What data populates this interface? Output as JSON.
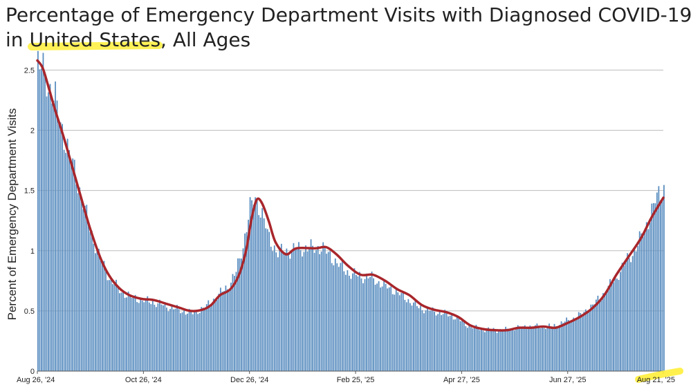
{
  "title": {
    "line1": "Percentage of Emergency Department Visits with Diagnosed COVID-19",
    "line2_prefix": "in ",
    "line2_highlight": "United States",
    "line2_suffix": ", All Ages",
    "highlight_color": "#ffee3a"
  },
  "colors": {
    "bars": "#5b8ec0",
    "line": "#a8262b",
    "grid": "#bdbdbd",
    "text": "#222222"
  },
  "chart_data": {
    "type": "bar",
    "ylabel": "Percent of Emergency Department Visits",
    "ylim": [
      0,
      2.6
    ],
    "y_ticks": [
      {
        "value": 0,
        "label": "0"
      },
      {
        "value": 0.5,
        "label": "0.5"
      },
      {
        "value": 1,
        "label": "1"
      },
      {
        "value": 1.5,
        "label": "1.5"
      },
      {
        "value": 2,
        "label": "2"
      },
      {
        "value": 2.5,
        "label": "2.5"
      }
    ],
    "x_range": [
      "2024-08-26",
      "2025-08-21"
    ],
    "x_ticks": [
      {
        "date": "2024-08-26",
        "label": "Aug 26, '24"
      },
      {
        "date": "2024-10-26",
        "label": "Oct 26, '24"
      },
      {
        "date": "2024-12-26",
        "label": "Dec 26, '24"
      },
      {
        "date": "2025-02-25",
        "label": "Feb 25, '25"
      },
      {
        "date": "2025-04-27",
        "label": "Apr 27, '25"
      },
      {
        "date": "2025-06-27",
        "label": "Jun 27, '25"
      },
      {
        "date": "2025-08-21",
        "label": "Aug 21, '25",
        "highlighted": true
      }
    ],
    "grid": true,
    "series": [
      {
        "kind": "bars",
        "frequency": "daily",
        "start_date": "2024-08-26",
        "end_date": "2025-08-21",
        "anchors": [
          [
            "2024-08-26",
            2.55
          ],
          [
            "2024-08-30",
            2.45
          ],
          [
            "2024-09-05",
            2.25
          ],
          [
            "2024-09-10",
            1.95
          ],
          [
            "2024-09-15",
            1.72
          ],
          [
            "2024-09-20",
            1.45
          ],
          [
            "2024-09-25",
            1.18
          ],
          [
            "2024-10-01",
            0.92
          ],
          [
            "2024-10-06",
            0.78
          ],
          [
            "2024-10-12",
            0.67
          ],
          [
            "2024-10-18",
            0.62
          ],
          [
            "2024-10-25",
            0.59
          ],
          [
            "2024-11-01",
            0.57
          ],
          [
            "2024-11-10",
            0.53
          ],
          [
            "2024-11-17",
            0.5
          ],
          [
            "2024-11-23",
            0.48
          ],
          [
            "2024-12-01",
            0.54
          ],
          [
            "2024-12-07",
            0.62
          ],
          [
            "2024-12-13",
            0.7
          ],
          [
            "2024-12-18",
            0.82
          ],
          [
            "2024-12-22",
            1.05
          ],
          [
            "2024-12-26",
            1.35
          ],
          [
            "2024-12-29",
            1.45
          ],
          [
            "2025-01-02",
            1.3
          ],
          [
            "2025-01-06",
            1.1
          ],
          [
            "2025-01-11",
            0.98
          ],
          [
            "2025-01-18",
            1.0
          ],
          [
            "2025-01-25",
            1.02
          ],
          [
            "2025-02-01",
            1.02
          ],
          [
            "2025-02-05",
            1.03
          ],
          [
            "2025-02-12",
            0.93
          ],
          [
            "2025-02-19",
            0.83
          ],
          [
            "2025-02-26",
            0.79
          ],
          [
            "2025-03-05",
            0.78
          ],
          [
            "2025-03-12",
            0.72
          ],
          [
            "2025-03-19",
            0.67
          ],
          [
            "2025-03-26",
            0.6
          ],
          [
            "2025-04-02",
            0.53
          ],
          [
            "2025-04-09",
            0.5
          ],
          [
            "2025-04-16",
            0.48
          ],
          [
            "2025-04-23",
            0.45
          ],
          [
            "2025-04-30",
            0.38
          ],
          [
            "2025-05-07",
            0.35
          ],
          [
            "2025-05-14",
            0.34
          ],
          [
            "2025-05-21",
            0.34
          ],
          [
            "2025-05-28",
            0.36
          ],
          [
            "2025-06-04",
            0.37
          ],
          [
            "2025-06-11",
            0.37
          ],
          [
            "2025-06-18",
            0.37
          ],
          [
            "2025-06-25",
            0.41
          ],
          [
            "2025-07-02",
            0.45
          ],
          [
            "2025-07-09",
            0.52
          ],
          [
            "2025-07-16",
            0.62
          ],
          [
            "2025-07-23",
            0.75
          ],
          [
            "2025-07-30",
            0.9
          ],
          [
            "2025-08-06",
            1.05
          ],
          [
            "2025-08-12",
            1.25
          ],
          [
            "2025-08-17",
            1.45
          ],
          [
            "2025-08-21",
            1.52
          ]
        ]
      },
      {
        "kind": "line",
        "points": [
          [
            "2024-08-26",
            2.58
          ],
          [
            "2024-08-29",
            2.52
          ],
          [
            "2024-09-01",
            2.38
          ],
          [
            "2024-09-05",
            2.18
          ],
          [
            "2024-09-10",
            1.95
          ],
          [
            "2024-09-15",
            1.7
          ],
          [
            "2024-09-20",
            1.45
          ],
          [
            "2024-09-25",
            1.2
          ],
          [
            "2024-10-01",
            0.95
          ],
          [
            "2024-10-06",
            0.8
          ],
          [
            "2024-10-12",
            0.69
          ],
          [
            "2024-10-18",
            0.63
          ],
          [
            "2024-10-25",
            0.6
          ],
          [
            "2024-11-01",
            0.59
          ],
          [
            "2024-11-08",
            0.56
          ],
          [
            "2024-11-15",
            0.53
          ],
          [
            "2024-11-22",
            0.5
          ],
          [
            "2024-11-29",
            0.51
          ],
          [
            "2024-12-04",
            0.55
          ],
          [
            "2024-12-09",
            0.63
          ],
          [
            "2024-12-15",
            0.68
          ],
          [
            "2024-12-20",
            0.8
          ],
          [
            "2024-12-24",
            1.0
          ],
          [
            "2024-12-27",
            1.25
          ],
          [
            "2024-12-30",
            1.42
          ],
          [
            "2025-01-02",
            1.4
          ],
          [
            "2025-01-06",
            1.25
          ],
          [
            "2025-01-10",
            1.07
          ],
          [
            "2025-01-16",
            0.97
          ],
          [
            "2025-01-22",
            1.02
          ],
          [
            "2025-02-02",
            1.02
          ],
          [
            "2025-02-08",
            1.03
          ],
          [
            "2025-02-14",
            0.97
          ],
          [
            "2025-02-21",
            0.87
          ],
          [
            "2025-02-28",
            0.8
          ],
          [
            "2025-03-07",
            0.8
          ],
          [
            "2025-03-14",
            0.75
          ],
          [
            "2025-03-21",
            0.68
          ],
          [
            "2025-03-28",
            0.63
          ],
          [
            "2025-04-04",
            0.55
          ],
          [
            "2025-04-11",
            0.51
          ],
          [
            "2025-04-18",
            0.49
          ],
          [
            "2025-04-25",
            0.45
          ],
          [
            "2025-05-02",
            0.38
          ],
          [
            "2025-05-09",
            0.35
          ],
          [
            "2025-05-16",
            0.34
          ],
          [
            "2025-05-23",
            0.34
          ],
          [
            "2025-05-30",
            0.36
          ],
          [
            "2025-06-06",
            0.36
          ],
          [
            "2025-06-13",
            0.37
          ],
          [
            "2025-06-20",
            0.36
          ],
          [
            "2025-06-27",
            0.4
          ],
          [
            "2025-07-04",
            0.45
          ],
          [
            "2025-07-11",
            0.52
          ],
          [
            "2025-07-18",
            0.63
          ],
          [
            "2025-07-25",
            0.8
          ],
          [
            "2025-08-01",
            0.95
          ],
          [
            "2025-08-08",
            1.1
          ],
          [
            "2025-08-14",
            1.27
          ],
          [
            "2025-08-21",
            1.44
          ]
        ]
      }
    ]
  }
}
